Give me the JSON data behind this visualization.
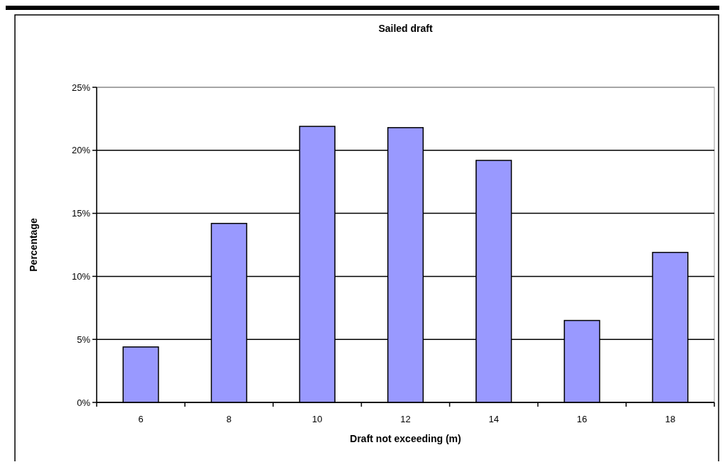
{
  "chart_data": {
    "type": "bar",
    "title": "Sailed draft",
    "xlabel": "Draft not exceeding (m)",
    "ylabel": "Percentage",
    "categories": [
      "6",
      "8",
      "10",
      "12",
      "14",
      "16",
      "18"
    ],
    "values": [
      4.4,
      14.2,
      21.9,
      21.8,
      19.2,
      6.5,
      11.9
    ],
    "color": "#9999ff",
    "ylim": [
      0,
      25
    ],
    "yticks": [
      {
        "value": 0,
        "label": "0%"
      },
      {
        "value": 5,
        "label": "5%"
      },
      {
        "value": 10,
        "label": "10%"
      },
      {
        "value": 15,
        "label": "15%"
      },
      {
        "value": 20,
        "label": "20%"
      },
      {
        "value": 25,
        "label": "25%"
      }
    ],
    "grid": "y"
  }
}
